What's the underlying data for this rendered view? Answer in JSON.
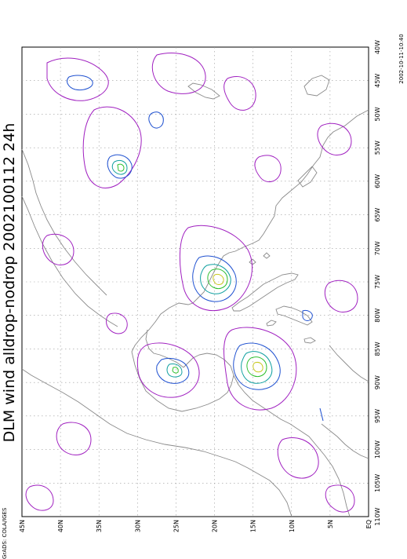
{
  "title": "DLM wind alldrop-nodrop 2002100112 24h",
  "timestamp": "2002-10-11-10:40",
  "credit": "GrADS: COLA/IGES",
  "lat_labels": [
    "45N",
    "40N",
    "35N",
    "30N",
    "25N",
    "20N",
    "15N",
    "10N",
    "5N",
    "EQ"
  ],
  "lon_labels": [
    "40W",
    "45W",
    "50W",
    "55W",
    "60W",
    "65W",
    "70W",
    "75W",
    "80W",
    "85W",
    "90W",
    "95W",
    "100W",
    "105W",
    "110W"
  ],
  "colors": {
    "coast": "#8a8a8a",
    "grid": "#999999",
    "contour_outer": "#a020c0",
    "contour_2": "#1e50d0",
    "contour_3": "#10a0a0",
    "contour_4": "#30c030",
    "contour_5": "#c8c820"
  }
}
